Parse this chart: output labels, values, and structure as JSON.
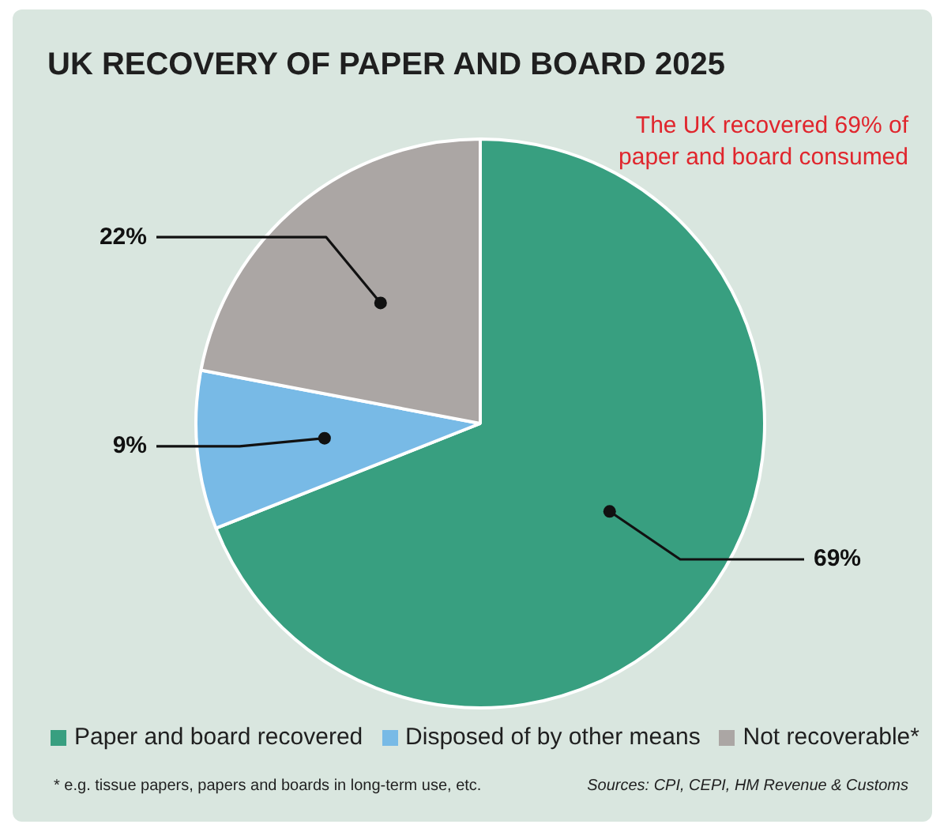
{
  "chart_data": {
    "type": "pie",
    "title": "UK RECOVERY OF PAPER AND BOARD 2025",
    "categories": [
      "Paper and board recovered",
      "Disposed of by other means",
      "Not recoverable*"
    ],
    "values": [
      69,
      9,
      22
    ],
    "colors": [
      "#389f80",
      "#78bae6",
      "#aba6a4"
    ],
    "value_labels": [
      "69%",
      "9%",
      "22%"
    ],
    "legend": "bottom",
    "annotations": [
      "The UK recovered 69% of paper and board consumed",
      "* e.g. tissue papers, papers and boards in long-term use, etc.",
      "Sources: CPI, CEPI, HM Revenue & Customs"
    ]
  }
}
